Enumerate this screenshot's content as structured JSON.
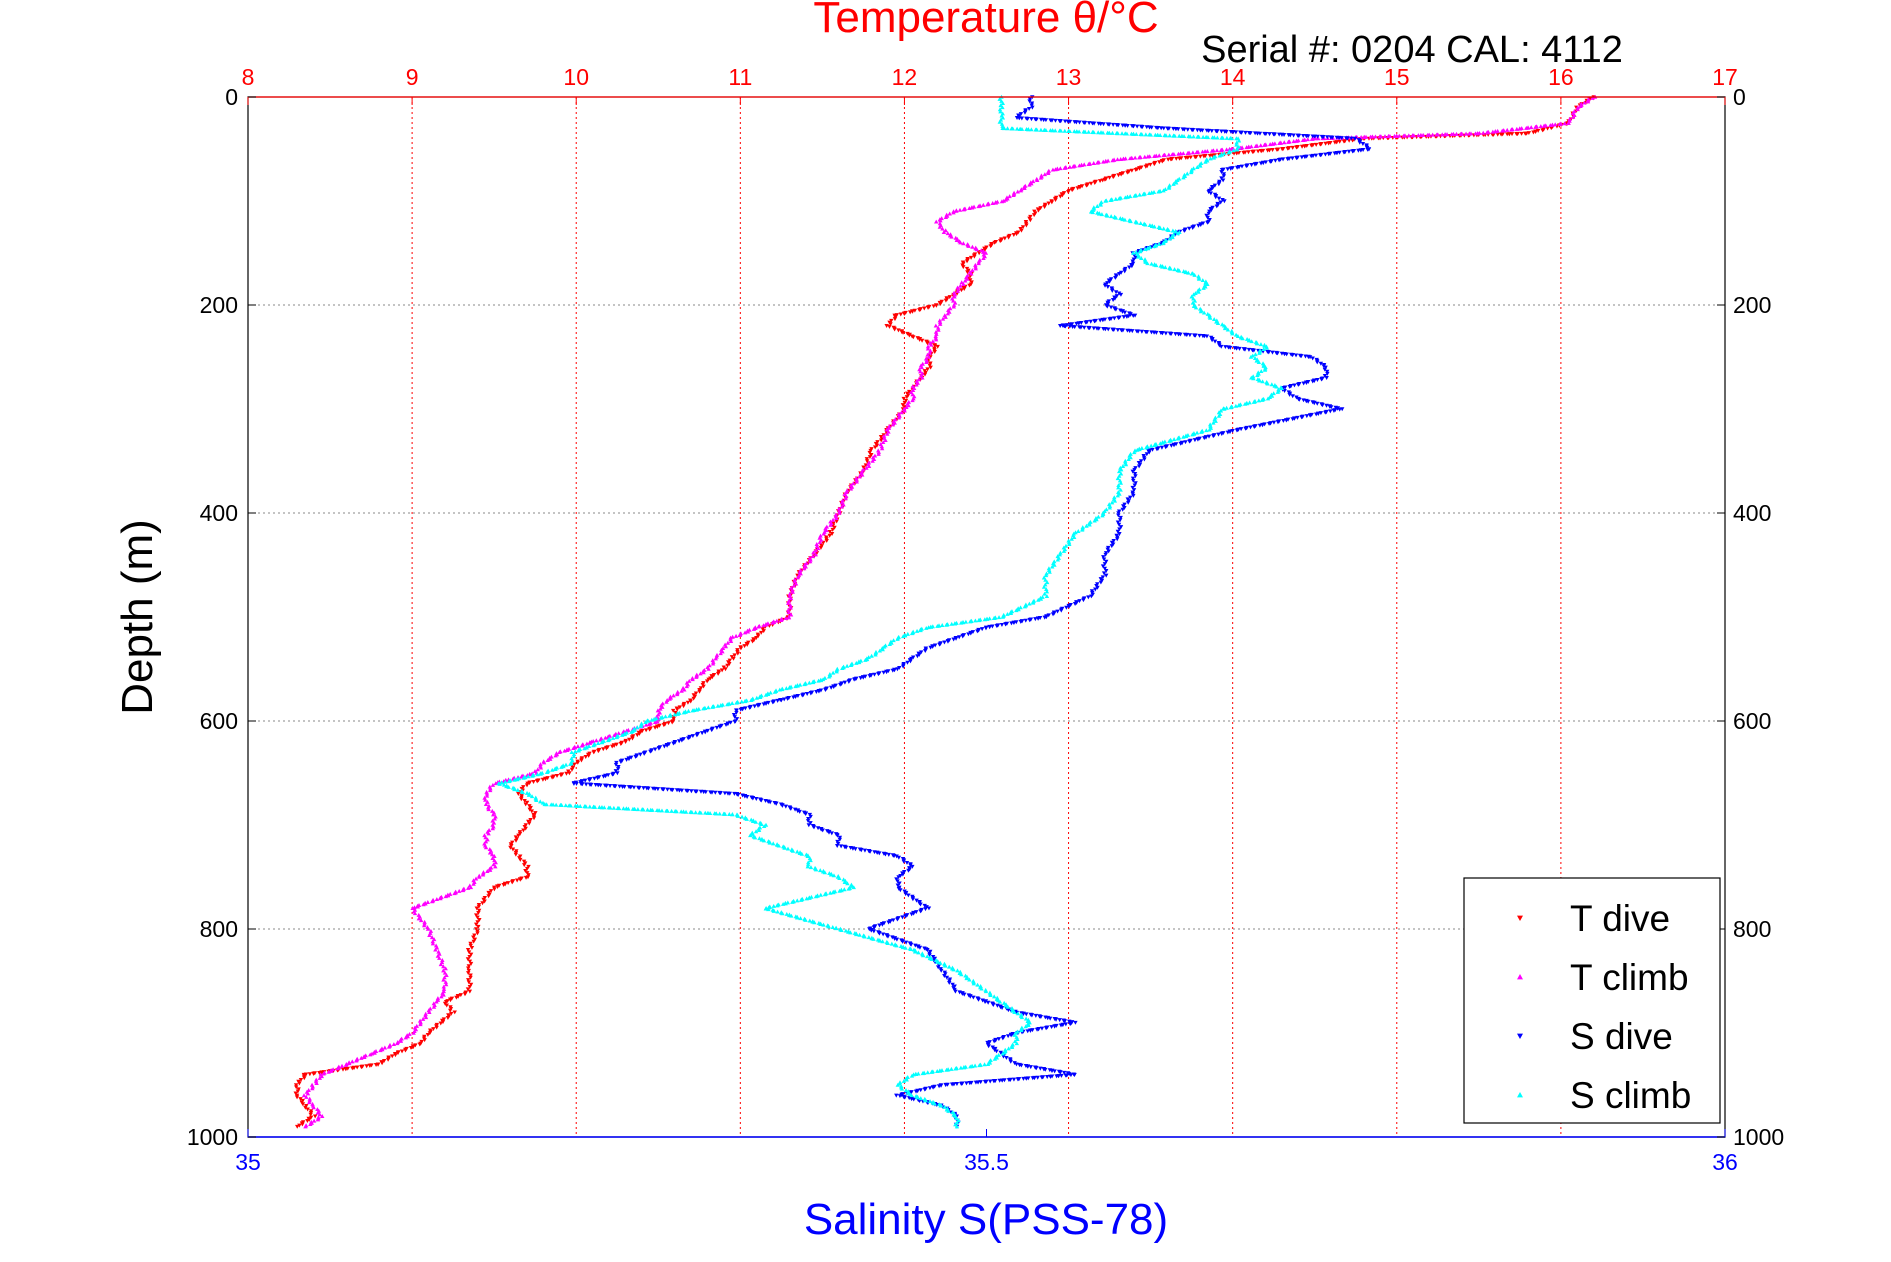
{
  "chart_data": {
    "type": "scatter",
    "title": "Temperature θ/°C",
    "subtitle": "Serial #: 0204  CAL: 4112",
    "xlabel": "Salinity S(PSS-78)",
    "ylabel": "Depth (m)",
    "y_axis": {
      "range": [
        0,
        1000
      ],
      "reversed": true,
      "ticks": [
        "0",
        "200",
        "400",
        "600",
        "800",
        "1000"
      ],
      "grid": true
    },
    "x_top_axis": {
      "quantity": "temperature",
      "range": [
        8,
        17
      ],
      "ticks": [
        "8",
        "9",
        "10",
        "11",
        "12",
        "13",
        "14",
        "15",
        "16",
        "17"
      ],
      "color": "#ff0000",
      "grid": true
    },
    "x_bottom_axis": {
      "quantity": "salinity",
      "range": [
        35,
        36
      ],
      "ticks": [
        "35",
        "35.5",
        "36"
      ],
      "color": "#0000ff"
    },
    "legend": {
      "position": "bottom-right"
    },
    "series": [
      {
        "name": "T dive",
        "axis": "temperature",
        "color": "#ff0000",
        "marker": "triangle-down",
        "depth": [
          0,
          10,
          25,
          35,
          40,
          50,
          60,
          70,
          80,
          90,
          100,
          110,
          120,
          130,
          140,
          150,
          160,
          170,
          180,
          190,
          200,
          210,
          220,
          230,
          240,
          250,
          260,
          270,
          280,
          290,
          300,
          320,
          340,
          360,
          380,
          400,
          420,
          440,
          460,
          480,
          500,
          510,
          520,
          530,
          540,
          550,
          560,
          570,
          580,
          590,
          600,
          610,
          620,
          630,
          640,
          650,
          660,
          670,
          680,
          690,
          700,
          710,
          720,
          730,
          740,
          750,
          760,
          780,
          800,
          820,
          840,
          860,
          870,
          880,
          900,
          910,
          920,
          930,
          940,
          950,
          960,
          970,
          980,
          990
        ],
        "values": [
          16.2,
          16.1,
          16.05,
          15.8,
          14.8,
          14.3,
          13.6,
          13.4,
          13.2,
          13.0,
          12.9,
          12.8,
          12.75,
          12.7,
          12.55,
          12.45,
          12.35,
          12.4,
          12.4,
          12.3,
          12.2,
          11.95,
          11.9,
          12.05,
          12.2,
          12.15,
          12.15,
          12.1,
          12.05,
          12.0,
          12.0,
          11.9,
          11.8,
          11.75,
          11.65,
          11.6,
          11.55,
          11.45,
          11.35,
          11.3,
          11.3,
          11.15,
          11.1,
          11.0,
          10.95,
          10.9,
          10.8,
          10.75,
          10.7,
          10.6,
          10.6,
          10.4,
          10.3,
          10.1,
          10.0,
          9.95,
          9.7,
          9.65,
          9.7,
          9.75,
          9.7,
          9.65,
          9.6,
          9.65,
          9.7,
          9.7,
          9.5,
          9.4,
          9.4,
          9.35,
          9.35,
          9.35,
          9.2,
          9.25,
          9.1,
          9.05,
          8.9,
          8.8,
          8.35,
          8.3,
          8.3,
          8.35,
          8.4,
          8.3
        ]
      },
      {
        "name": "T climb",
        "axis": "temperature",
        "color": "#ff00ff",
        "marker": "triangle-up",
        "depth": [
          0,
          10,
          25,
          35,
          40,
          50,
          60,
          70,
          80,
          90,
          100,
          110,
          120,
          130,
          140,
          150,
          160,
          170,
          180,
          190,
          200,
          210,
          220,
          230,
          240,
          250,
          260,
          270,
          280,
          290,
          300,
          320,
          340,
          360,
          380,
          400,
          420,
          440,
          460,
          480,
          500,
          510,
          520,
          530,
          540,
          550,
          560,
          570,
          580,
          590,
          600,
          610,
          620,
          630,
          640,
          650,
          660,
          670,
          680,
          690,
          700,
          710,
          720,
          730,
          740,
          750,
          760,
          780,
          800,
          820,
          840,
          860,
          870,
          880,
          900,
          910,
          920,
          930,
          940,
          950,
          960,
          970,
          980,
          990
        ],
        "values": [
          16.2,
          16.1,
          16.05,
          15.5,
          14.5,
          14.0,
          13.3,
          12.9,
          12.8,
          12.7,
          12.6,
          12.3,
          12.2,
          12.25,
          12.35,
          12.5,
          12.45,
          12.4,
          12.35,
          12.3,
          12.3,
          12.25,
          12.2,
          12.2,
          12.15,
          12.15,
          12.1,
          12.1,
          12.05,
          12.05,
          12.0,
          11.9,
          11.85,
          11.75,
          11.65,
          11.6,
          11.5,
          11.45,
          11.35,
          11.3,
          11.3,
          11.1,
          10.95,
          10.9,
          10.85,
          10.8,
          10.7,
          10.65,
          10.55,
          10.5,
          10.5,
          10.3,
          10.1,
          9.9,
          9.8,
          9.75,
          9.5,
          9.45,
          9.45,
          9.5,
          9.5,
          9.45,
          9.45,
          9.5,
          9.5,
          9.4,
          9.35,
          9.0,
          9.1,
          9.15,
          9.2,
          9.2,
          9.15,
          9.1,
          9.0,
          8.9,
          8.75,
          8.6,
          8.45,
          8.4,
          8.35,
          8.4,
          8.45,
          8.35
        ]
      },
      {
        "name": "S dive",
        "axis": "salinity",
        "color": "#0000ff",
        "marker": "triangle-down",
        "depth": [
          0,
          10,
          20,
          30,
          40,
          50,
          60,
          70,
          80,
          90,
          100,
          110,
          120,
          130,
          140,
          150,
          160,
          170,
          180,
          190,
          200,
          210,
          220,
          230,
          240,
          250,
          260,
          270,
          280,
          290,
          300,
          320,
          340,
          360,
          380,
          400,
          420,
          440,
          460,
          480,
          500,
          510,
          520,
          530,
          540,
          550,
          560,
          570,
          580,
          590,
          600,
          610,
          620,
          630,
          640,
          650,
          660,
          670,
          680,
          690,
          700,
          710,
          720,
          730,
          740,
          750,
          760,
          780,
          800,
          820,
          840,
          860,
          870,
          880,
          890,
          900,
          910,
          920,
          930,
          940,
          950,
          960,
          970,
          980,
          990
        ],
        "values": [
          35.53,
          35.53,
          35.52,
          35.62,
          35.75,
          35.76,
          35.7,
          35.66,
          35.66,
          35.65,
          35.66,
          35.65,
          35.65,
          35.63,
          35.62,
          35.6,
          35.6,
          35.59,
          35.58,
          35.59,
          35.58,
          35.6,
          35.55,
          35.65,
          35.66,
          35.72,
          35.73,
          35.73,
          35.7,
          35.71,
          35.74,
          35.67,
          35.61,
          35.6,
          35.6,
          35.59,
          35.59,
          35.58,
          35.58,
          35.57,
          35.54,
          35.5,
          35.48,
          35.46,
          35.45,
          35.44,
          35.41,
          35.39,
          35.36,
          35.33,
          35.33,
          35.31,
          35.29,
          35.27,
          35.25,
          35.25,
          35.22,
          35.33,
          35.36,
          35.38,
          35.38,
          35.4,
          35.4,
          35.44,
          35.45,
          35.44,
          35.44,
          35.46,
          35.42,
          35.46,
          35.47,
          35.48,
          35.5,
          35.52,
          35.56,
          35.52,
          35.5,
          35.51,
          35.52,
          35.56,
          35.47,
          35.44,
          35.47,
          35.48,
          35.48
        ]
      },
      {
        "name": "S climb",
        "axis": "salinity",
        "color": "#00ffff",
        "marker": "triangle-up",
        "depth": [
          0,
          10,
          20,
          30,
          40,
          50,
          60,
          70,
          80,
          90,
          100,
          110,
          120,
          130,
          140,
          150,
          160,
          170,
          180,
          190,
          200,
          210,
          220,
          230,
          240,
          250,
          260,
          270,
          280,
          290,
          300,
          320,
          340,
          360,
          380,
          400,
          420,
          440,
          460,
          480,
          500,
          510,
          520,
          530,
          540,
          550,
          560,
          570,
          580,
          590,
          600,
          610,
          620,
          630,
          640,
          650,
          660,
          670,
          680,
          690,
          700,
          710,
          720,
          730,
          740,
          750,
          760,
          780,
          800,
          820,
          840,
          860,
          870,
          880,
          890,
          900,
          910,
          920,
          930,
          940,
          950,
          960,
          970,
          980,
          990
        ],
        "values": [
          35.51,
          35.51,
          35.51,
          35.51,
          35.67,
          35.67,
          35.65,
          35.64,
          35.63,
          35.62,
          35.58,
          35.57,
          35.6,
          35.63,
          35.62,
          35.6,
          35.61,
          35.64,
          35.65,
          35.64,
          35.64,
          35.65,
          35.66,
          35.67,
          35.69,
          35.68,
          35.69,
          35.68,
          35.7,
          35.69,
          35.66,
          35.65,
          35.6,
          35.59,
          35.59,
          35.58,
          35.56,
          35.55,
          35.54,
          35.54,
          35.51,
          35.46,
          35.44,
          35.43,
          35.42,
          35.4,
          35.39,
          35.36,
          35.34,
          35.3,
          35.27,
          35.26,
          35.24,
          35.22,
          35.22,
          35.2,
          35.17,
          35.19,
          35.2,
          35.33,
          35.35,
          35.34,
          35.36,
          35.38,
          35.38,
          35.4,
          35.41,
          35.35,
          35.4,
          35.45,
          35.48,
          35.5,
          35.51,
          35.52,
          35.53,
          35.52,
          35.52,
          35.51,
          35.5,
          35.45,
          35.44,
          35.45,
          35.47,
          35.48,
          35.48
        ]
      }
    ]
  }
}
